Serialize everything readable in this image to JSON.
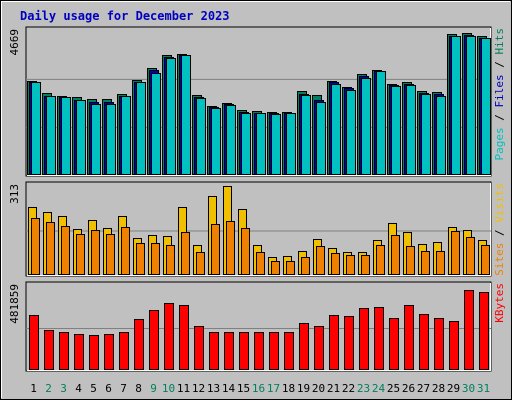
{
  "title": "Daily usage for December 2023",
  "colors": {
    "page_bg": "#c0c0c0",
    "plot_bg": "#c0c0c0",
    "title": "#0000c0",
    "hits": "#00805c",
    "files": "#0000c0",
    "pages": "#00c0c0",
    "visits": "#f0c000",
    "sites": "#f08000",
    "kbytes": "#ff0000",
    "weekend_label": "#00805c",
    "weekday_label": "#000000"
  },
  "chart_data": [
    {
      "type": "bar",
      "panel": "top",
      "ymax_label": "4669",
      "ymax": 4669,
      "right_label_parts": [
        {
          "text": "Pages",
          "key": "pages"
        },
        {
          "text": " / ",
          "key": "sep"
        },
        {
          "text": "Files",
          "key": "files"
        },
        {
          "text": " / ",
          "key": "sep"
        },
        {
          "text": "Hits",
          "key": "hits"
        }
      ],
      "categories": [
        "1",
        "2",
        "3",
        "4",
        "5",
        "6",
        "7",
        "8",
        "9",
        "10",
        "11",
        "12",
        "13",
        "14",
        "15",
        "16",
        "17",
        "18",
        "19",
        "20",
        "21",
        "22",
        "23",
        "24",
        "25",
        "26",
        "27",
        "28",
        "29",
        "30",
        "31"
      ],
      "series": [
        {
          "name": "Hits",
          "key": "hits",
          "values": [
            3050,
            2650,
            2550,
            2500,
            2450,
            2450,
            2600,
            3080,
            3450,
            3900,
            3930,
            2580,
            2230,
            2310,
            2080,
            2060,
            2010,
            2030,
            2700,
            2570,
            3050,
            2840,
            3280,
            3410,
            2930,
            3010,
            2720,
            2680,
            4580,
            4590,
            4500
          ]
        },
        {
          "name": "Files",
          "key": "files",
          "values": [
            3000,
            2550,
            2500,
            2400,
            2350,
            2350,
            2550,
            3000,
            3400,
            3820,
            3880,
            2500,
            2200,
            2280,
            2030,
            2000,
            1980,
            2000,
            2620,
            2400,
            3000,
            2800,
            3200,
            3350,
            2900,
            2950,
            2650,
            2600,
            4500,
            4550,
            4450
          ]
        },
        {
          "name": "Pages",
          "key": "pages",
          "values": [
            3000,
            2550,
            2500,
            2400,
            2300,
            2300,
            2550,
            3000,
            3300,
            3780,
            3880,
            2480,
            2150,
            2250,
            2000,
            1980,
            1950,
            1990,
            2580,
            2350,
            2950,
            2750,
            3150,
            3350,
            2880,
            2920,
            2600,
            2550,
            4500,
            4500,
            4450
          ]
        }
      ]
    },
    {
      "type": "bar",
      "panel": "middle",
      "ymax_label": "313",
      "ymax": 313,
      "right_label_parts": [
        {
          "text": "Sites",
          "key": "sites"
        },
        {
          "text": " / ",
          "key": "sep"
        },
        {
          "text": "Visits",
          "key": "visits"
        }
      ],
      "categories": [
        "1",
        "2",
        "3",
        "4",
        "5",
        "6",
        "7",
        "8",
        "9",
        "10",
        "11",
        "12",
        "13",
        "14",
        "15",
        "16",
        "17",
        "18",
        "19",
        "20",
        "21",
        "22",
        "23",
        "24",
        "25",
        "26",
        "27",
        "28",
        "29",
        "30",
        "31"
      ],
      "series": [
        {
          "name": "Visits",
          "key": "visits",
          "values": [
            238,
            222,
            208,
            160,
            191,
            164,
            207,
            128,
            140,
            134,
            239,
            104,
            276,
            313,
            230,
            103,
            62,
            63,
            82,
            124,
            92,
            77,
            77,
            121,
            183,
            148,
            105,
            115,
            168,
            155,
            121
          ]
        },
        {
          "name": "Sites",
          "key": "sites",
          "values": [
            200,
            184,
            172,
            141,
            157,
            144,
            168,
            110,
            110,
            104,
            148,
            79,
            177,
            188,
            165,
            77,
            46,
            47,
            60,
            98,
            73,
            67,
            68,
            102,
            137,
            101,
            82,
            81,
            153,
            130,
            102
          ]
        }
      ]
    },
    {
      "type": "bar",
      "panel": "bottom",
      "ymax_label": "481859",
      "ymax": 481859,
      "right_label_parts": [
        {
          "text": "KBytes",
          "key": "kbytes"
        }
      ],
      "categories": [
        "1",
        "2",
        "3",
        "4",
        "5",
        "6",
        "7",
        "8",
        "9",
        "10",
        "11",
        "12",
        "13",
        "14",
        "15",
        "16",
        "17",
        "18",
        "19",
        "20",
        "21",
        "22",
        "23",
        "24",
        "25",
        "26",
        "27",
        "28",
        "29",
        "30",
        "31"
      ],
      "series": [
        {
          "name": "KBytes",
          "key": "kbytes",
          "values": [
            312000,
            225000,
            212000,
            204000,
            198000,
            202000,
            214000,
            291000,
            344000,
            383000,
            372000,
            251000,
            213000,
            215000,
            213000,
            216000,
            214000,
            216000,
            268000,
            249000,
            315000,
            306000,
            355000,
            362000,
            295000,
            374000,
            320000,
            295000,
            277000,
            460000,
            445000
          ]
        }
      ]
    }
  ],
  "x_labels": {
    "values": [
      "1",
      "2",
      "3",
      "4",
      "5",
      "6",
      "7",
      "8",
      "9",
      "10",
      "11",
      "12",
      "13",
      "14",
      "15",
      "16",
      "17",
      "18",
      "19",
      "20",
      "21",
      "22",
      "23",
      "24",
      "25",
      "26",
      "27",
      "28",
      "29",
      "30",
      "31"
    ],
    "weekend_days": [
      "2",
      "3",
      "9",
      "10",
      "16",
      "17",
      "23",
      "24",
      "30",
      "31"
    ]
  }
}
